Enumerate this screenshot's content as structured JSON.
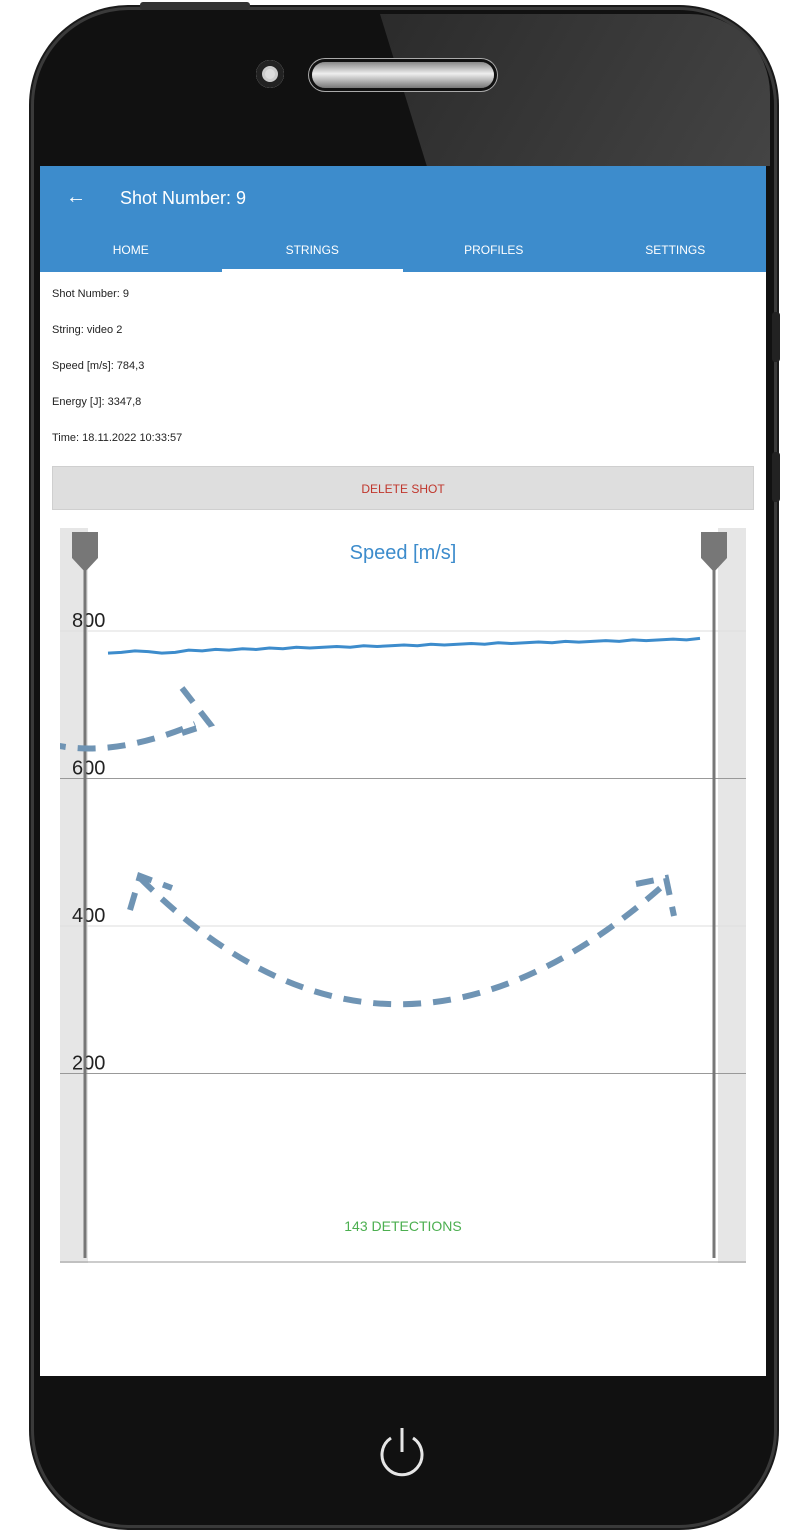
{
  "header": {
    "title": "Shot Number: 9",
    "back_icon": "arrow-left-icon"
  },
  "tabs": [
    {
      "label": "HOME"
    },
    {
      "label": "STRINGS",
      "active": true
    },
    {
      "label": "PROFILES"
    },
    {
      "label": "SETTINGS"
    }
  ],
  "shot": {
    "number": "Shot Number: 9",
    "string": "String: video 2",
    "speed": "Speed [m/s]: 784,3",
    "energy": "Energy [J]: 3347,8",
    "time": "Time: 18.11.2022 10:33:57"
  },
  "actions": {
    "delete_label": "DELETE SHOT"
  },
  "chart": {
    "detections_label": "143 DETECTIONS"
  },
  "chart_data": {
    "type": "line",
    "title": "Speed [m/s]",
    "ylim": [
      0,
      850
    ],
    "yticks": [
      "800",
      "600",
      "400",
      "200"
    ],
    "ytick_values": [
      800,
      600,
      400,
      200
    ],
    "series": [
      {
        "values": [
          770,
          771,
          773,
          772,
          770,
          771,
          774,
          773,
          775,
          774,
          776,
          775,
          777,
          776,
          778,
          777,
          778,
          779,
          778,
          780,
          779,
          780,
          781,
          780,
          782,
          781,
          782,
          783,
          782,
          784,
          783,
          784,
          785,
          784,
          786,
          785,
          786,
          787,
          786,
          788,
          787,
          788,
          789,
          788,
          790
        ]
      }
    ],
    "colors": {
      "line": "#3d8ccc",
      "detections": "#4caf50",
      "title": "#3d8ccc"
    }
  }
}
